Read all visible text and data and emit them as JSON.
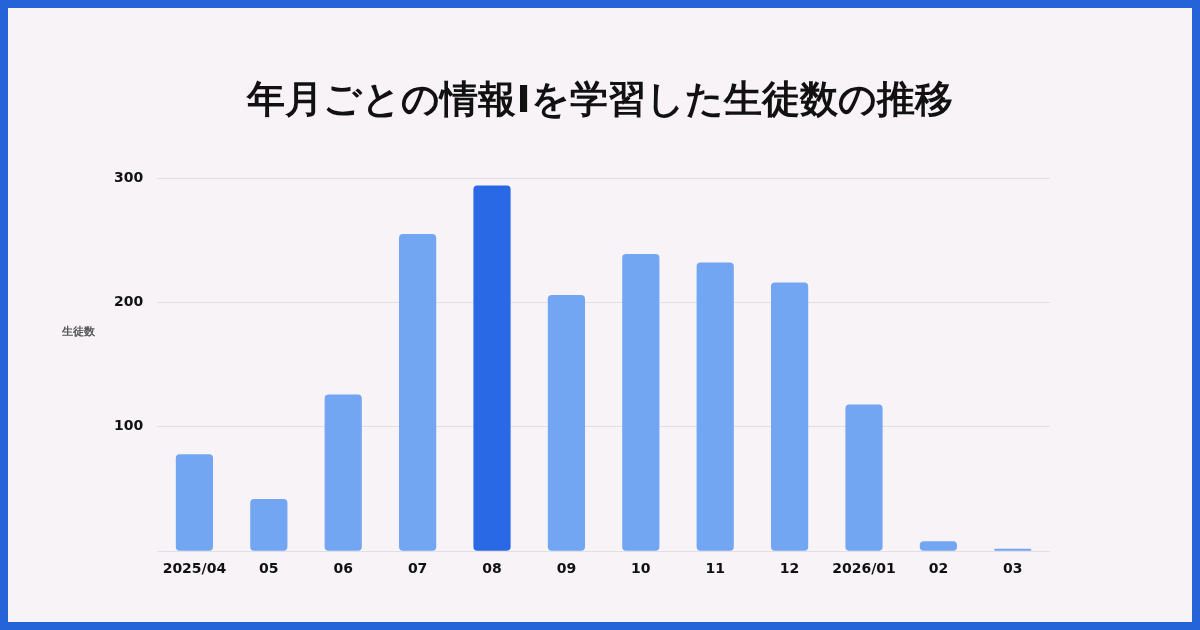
{
  "chart_data": {
    "type": "bar",
    "title": "年月ごとの情報Ⅰを学習した生徒数の推移",
    "ylabel": "生徒数",
    "categories": [
      "2025/04",
      "05",
      "06",
      "07",
      "08",
      "09",
      "10",
      "11",
      "12",
      "2026/01",
      "02",
      "03"
    ],
    "values": [
      78,
      42,
      126,
      255,
      294,
      206,
      239,
      232,
      216,
      118,
      8,
      2
    ],
    "colors": [
      "#72a6f2",
      "#72a6f2",
      "#72a6f2",
      "#72a6f2",
      "#2a69e6",
      "#72a6f2",
      "#72a6f2",
      "#72a6f2",
      "#72a6f2",
      "#72a6f2",
      "#72a6f2",
      "#72a6f2"
    ],
    "ylim": [
      0,
      300
    ],
    "yticks": [
      {
        "value": 0,
        "label": null
      },
      100,
      200,
      300
    ],
    "grid": "y",
    "legend": false
  }
}
